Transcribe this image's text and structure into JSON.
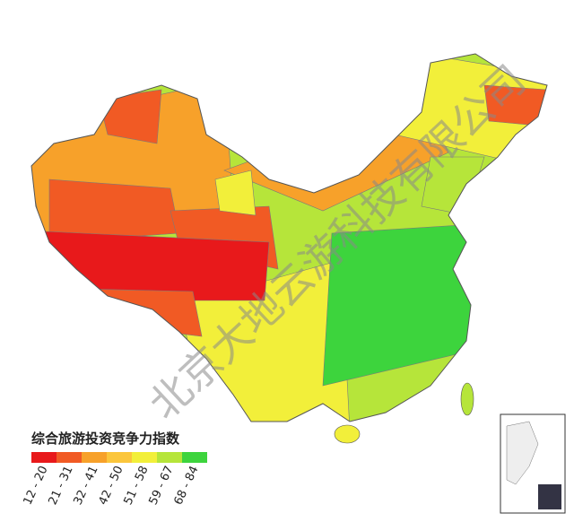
{
  "watermark": "北京大地云游科技有限公司",
  "legend": {
    "title": "综合旅游投资竞争力指数",
    "items": [
      {
        "label": "12 - 20",
        "color": "#e8191b"
      },
      {
        "label": "21 - 31",
        "color": "#f15a24"
      },
      {
        "label": "32 - 41",
        "color": "#f7a12a"
      },
      {
        "label": "42 - 50",
        "color": "#fbc63c"
      },
      {
        "label": "51 - 58",
        "color": "#f2ef3a"
      },
      {
        "label": "59 - 67",
        "color": "#b6e53a"
      },
      {
        "label": "68 - 84",
        "color": "#3dd43d"
      }
    ]
  }
}
